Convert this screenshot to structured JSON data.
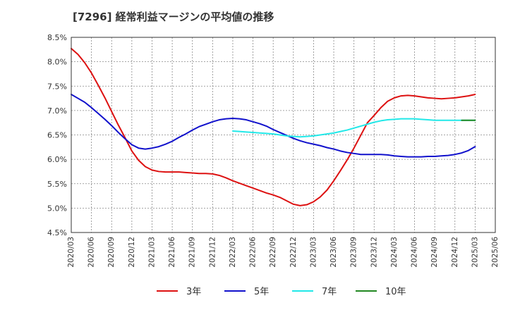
{
  "title": "[7296]  経常利益マージンの平均値の推移",
  "chart_data": {
    "type": "line",
    "title": "[7296]  経常利益マージンの平均値の推移",
    "xlabel": "",
    "ylabel": "",
    "ylim": [
      4.5,
      8.5
    ],
    "y_unit": "%",
    "yticks": [
      "4.5%",
      "5.0%",
      "5.5%",
      "6.0%",
      "6.5%",
      "7.0%",
      "7.5%",
      "8.0%",
      "8.5%"
    ],
    "xticks": [
      "2020/03",
      "2020/06",
      "2020/09",
      "2020/12",
      "2021/03",
      "2021/06",
      "2021/09",
      "2021/12",
      "2022/03",
      "2022/06",
      "2022/09",
      "2022/12",
      "2023/03",
      "2023/06",
      "2023/09",
      "2023/12",
      "2024/03",
      "2024/06",
      "2024/09",
      "2024/12",
      "2025/03",
      "2025/06"
    ],
    "grid": true,
    "legend_position": "bottom",
    "series": [
      {
        "name": "3年",
        "color": "#dd1111",
        "points": [
          [
            "2020/03",
            8.27
          ],
          [
            "2020/04",
            8.15
          ],
          [
            "2020/05",
            7.98
          ],
          [
            "2020/06",
            7.77
          ],
          [
            "2020/07",
            7.52
          ],
          [
            "2020/08",
            7.26
          ],
          [
            "2020/09",
            6.98
          ],
          [
            "2020/10",
            6.7
          ],
          [
            "2020/11",
            6.44
          ],
          [
            "2020/12",
            6.17
          ],
          [
            "2021/01",
            5.98
          ],
          [
            "2021/02",
            5.85
          ],
          [
            "2021/03",
            5.78
          ],
          [
            "2021/04",
            5.75
          ],
          [
            "2021/05",
            5.74
          ],
          [
            "2021/06",
            5.74
          ],
          [
            "2021/07",
            5.74
          ],
          [
            "2021/08",
            5.73
          ],
          [
            "2021/09",
            5.72
          ],
          [
            "2021/10",
            5.71
          ],
          [
            "2021/11",
            5.71
          ],
          [
            "2021/12",
            5.7
          ],
          [
            "2022/01",
            5.67
          ],
          [
            "2022/02",
            5.62
          ],
          [
            "2022/03",
            5.56
          ],
          [
            "2022/04",
            5.51
          ],
          [
            "2022/05",
            5.46
          ],
          [
            "2022/06",
            5.41
          ],
          [
            "2022/07",
            5.36
          ],
          [
            "2022/08",
            5.31
          ],
          [
            "2022/09",
            5.27
          ],
          [
            "2022/10",
            5.22
          ],
          [
            "2022/11",
            5.15
          ],
          [
            "2022/12",
            5.08
          ],
          [
            "2023/01",
            5.05
          ],
          [
            "2023/02",
            5.07
          ],
          [
            "2023/03",
            5.13
          ],
          [
            "2023/04",
            5.23
          ],
          [
            "2023/05",
            5.37
          ],
          [
            "2023/06",
            5.56
          ],
          [
            "2023/07",
            5.77
          ],
          [
            "2023/08",
            5.99
          ],
          [
            "2023/09",
            6.23
          ],
          [
            "2023/10",
            6.49
          ],
          [
            "2023/11",
            6.75
          ],
          [
            "2023/12",
            6.9
          ],
          [
            "2024/01",
            7.06
          ],
          [
            "2024/02",
            7.19
          ],
          [
            "2024/03",
            7.26
          ],
          [
            "2024/04",
            7.3
          ],
          [
            "2024/05",
            7.31
          ],
          [
            "2024/06",
            7.3
          ],
          [
            "2024/07",
            7.28
          ],
          [
            "2024/08",
            7.26
          ],
          [
            "2024/09",
            7.25
          ],
          [
            "2024/10",
            7.24
          ],
          [
            "2024/11",
            7.25
          ],
          [
            "2024/12",
            7.26
          ],
          [
            "2025/01",
            7.28
          ],
          [
            "2025/02",
            7.3
          ],
          [
            "2025/03",
            7.33
          ]
        ]
      },
      {
        "name": "5年",
        "color": "#1111cc",
        "points": [
          [
            "2020/03",
            7.33
          ],
          [
            "2020/04",
            7.25
          ],
          [
            "2020/05",
            7.17
          ],
          [
            "2020/06",
            7.06
          ],
          [
            "2020/07",
            6.94
          ],
          [
            "2020/08",
            6.82
          ],
          [
            "2020/09",
            6.69
          ],
          [
            "2020/10",
            6.55
          ],
          [
            "2020/11",
            6.42
          ],
          [
            "2020/12",
            6.3
          ],
          [
            "2021/01",
            6.23
          ],
          [
            "2021/02",
            6.21
          ],
          [
            "2021/03",
            6.23
          ],
          [
            "2021/04",
            6.26
          ],
          [
            "2021/05",
            6.31
          ],
          [
            "2021/06",
            6.37
          ],
          [
            "2021/07",
            6.45
          ],
          [
            "2021/08",
            6.52
          ],
          [
            "2021/09",
            6.6
          ],
          [
            "2021/10",
            6.67
          ],
          [
            "2021/11",
            6.72
          ],
          [
            "2021/12",
            6.77
          ],
          [
            "2022/01",
            6.81
          ],
          [
            "2022/02",
            6.83
          ],
          [
            "2022/03",
            6.84
          ],
          [
            "2022/04",
            6.83
          ],
          [
            "2022/05",
            6.81
          ],
          [
            "2022/06",
            6.77
          ],
          [
            "2022/07",
            6.73
          ],
          [
            "2022/08",
            6.68
          ],
          [
            "2022/09",
            6.61
          ],
          [
            "2022/10",
            6.55
          ],
          [
            "2022/11",
            6.49
          ],
          [
            "2022/12",
            6.43
          ],
          [
            "2023/01",
            6.38
          ],
          [
            "2023/02",
            6.34
          ],
          [
            "2023/03",
            6.31
          ],
          [
            "2023/04",
            6.28
          ],
          [
            "2023/05",
            6.24
          ],
          [
            "2023/06",
            6.21
          ],
          [
            "2023/07",
            6.17
          ],
          [
            "2023/08",
            6.14
          ],
          [
            "2023/09",
            6.12
          ],
          [
            "2023/10",
            6.1
          ],
          [
            "2023/11",
            6.1
          ],
          [
            "2023/12",
            6.1
          ],
          [
            "2024/01",
            6.1
          ],
          [
            "2024/02",
            6.09
          ],
          [
            "2024/03",
            6.07
          ],
          [
            "2024/04",
            6.06
          ],
          [
            "2024/05",
            6.05
          ],
          [
            "2024/06",
            6.05
          ],
          [
            "2024/07",
            6.05
          ],
          [
            "2024/08",
            6.06
          ],
          [
            "2024/09",
            6.06
          ],
          [
            "2024/10",
            6.07
          ],
          [
            "2024/11",
            6.08
          ],
          [
            "2024/12",
            6.1
          ],
          [
            "2025/01",
            6.13
          ],
          [
            "2025/02",
            6.18
          ],
          [
            "2025/03",
            6.26
          ]
        ]
      },
      {
        "name": "7年",
        "color": "#22e8e8",
        "points": [
          [
            "2022/03",
            6.58
          ],
          [
            "2022/04",
            6.57
          ],
          [
            "2022/05",
            6.56
          ],
          [
            "2022/06",
            6.55
          ],
          [
            "2022/07",
            6.54
          ],
          [
            "2022/08",
            6.53
          ],
          [
            "2022/09",
            6.52
          ],
          [
            "2022/10",
            6.5
          ],
          [
            "2022/11",
            6.48
          ],
          [
            "2022/12",
            6.47
          ],
          [
            "2023/01",
            6.46
          ],
          [
            "2023/02",
            6.47
          ],
          [
            "2023/03",
            6.48
          ],
          [
            "2023/04",
            6.5
          ],
          [
            "2023/05",
            6.52
          ],
          [
            "2023/06",
            6.54
          ],
          [
            "2023/07",
            6.57
          ],
          [
            "2023/08",
            6.6
          ],
          [
            "2023/09",
            6.64
          ],
          [
            "2023/10",
            6.68
          ],
          [
            "2023/11",
            6.72
          ],
          [
            "2023/12",
            6.76
          ],
          [
            "2024/01",
            6.79
          ],
          [
            "2024/02",
            6.81
          ],
          [
            "2024/03",
            6.82
          ],
          [
            "2024/04",
            6.83
          ],
          [
            "2024/05",
            6.83
          ],
          [
            "2024/06",
            6.83
          ],
          [
            "2024/07",
            6.82
          ],
          [
            "2024/08",
            6.81
          ],
          [
            "2024/09",
            6.8
          ],
          [
            "2024/10",
            6.8
          ],
          [
            "2024/11",
            6.8
          ],
          [
            "2024/12",
            6.8
          ],
          [
            "2025/01",
            6.8
          ],
          [
            "2025/02",
            6.8
          ],
          [
            "2025/03",
            6.8
          ]
        ]
      },
      {
        "name": "10年",
        "color": "#228822",
        "points": [
          [
            "2025/01",
            6.8
          ],
          [
            "2025/02",
            6.8
          ],
          [
            "2025/03",
            6.8
          ]
        ]
      }
    ]
  }
}
